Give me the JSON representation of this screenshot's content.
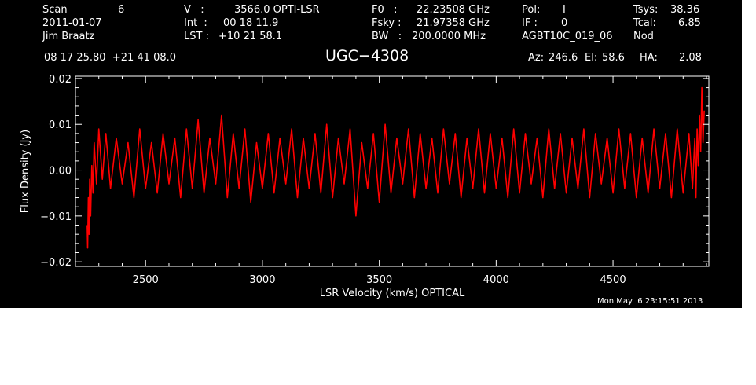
{
  "header": {
    "col1": {
      "scan_label": "Scan",
      "scan_value": "6",
      "date": "2011-01-07",
      "observer": "Jim Braatz"
    },
    "col2": {
      "v_label": "V   :",
      "v_value": "3566.0 OPTI-LSR",
      "int_label": "Int  :",
      "int_value": "00 18 11.9",
      "lst_label": "LST :",
      "lst_value": "+10 21 58.1"
    },
    "col3": {
      "f0_label": "F0   :",
      "f0_value": "22.23508 GHz",
      "fsky_label": "Fsky :",
      "fsky_value": "21.97358 GHz",
      "bw_label": "BW   :",
      "bw_value": "200.0000 MHz"
    },
    "col4": {
      "pol_label": "Pol:",
      "pol_value": "I",
      "if_label": "IF :",
      "if_value": "0",
      "project": "AGBT10C_019_06"
    },
    "col5": {
      "tsys_label": "Tsys:",
      "tsys_value": "38.36",
      "tcal_label": "Tcal:",
      "tcal_value": "6.85",
      "mode": "Nod"
    },
    "coords": "08 17 25.80  +21 41 08.0",
    "source": "UGC−4308",
    "az_label": "Az:",
    "az_value": "246.6",
    "el_label": "El:",
    "el_value": "58.6",
    "ha_label": "HA:",
    "ha_value": "2.08"
  },
  "timestamp": "Mon May  6 23:15:51 2013",
  "colors": {
    "background": "#000000",
    "axes": "#ffffff",
    "series": "#ff0000"
  },
  "chart_data": {
    "type": "line",
    "xlabel": "LSR Velocity (km/s) OPTICAL",
    "ylabel": "Flux Density (Jy)",
    "xlim": [
      2200,
      4910
    ],
    "ylim": [
      -0.021,
      0.0205
    ],
    "x_ticks": [
      2500,
      3000,
      3500,
      4000,
      4500
    ],
    "x_tick_labels": [
      "2500",
      "3000",
      "3500",
      "4000",
      "4500"
    ],
    "y_ticks": [
      -0.02,
      -0.01,
      0.0,
      0.01,
      0.02
    ],
    "y_tick_labels": [
      "−0.02",
      "−0.01",
      "0.00",
      "0.01",
      "0.02"
    ],
    "grid": false,
    "series": [
      {
        "color": "#ff0000",
        "x": [
          2250,
          2252,
          2255,
          2258,
          2261,
          2265,
          2270,
          2275,
          2280,
          2290,
          2300,
          2315,
          2330,
          2350,
          2375,
          2400,
          2425,
          2450,
          2475,
          2500,
          2525,
          2550,
          2575,
          2600,
          2625,
          2650,
          2675,
          2700,
          2725,
          2750,
          2775,
          2800,
          2825,
          2850,
          2875,
          2900,
          2925,
          2950,
          2975,
          3000,
          3025,
          3050,
          3075,
          3100,
          3125,
          3150,
          3175,
          3200,
          3225,
          3250,
          3275,
          3300,
          3325,
          3350,
          3375,
          3400,
          3425,
          3450,
          3475,
          3500,
          3525,
          3550,
          3575,
          3600,
          3625,
          3650,
          3675,
          3700,
          3725,
          3750,
          3775,
          3800,
          3825,
          3850,
          3875,
          3900,
          3925,
          3950,
          3975,
          4000,
          4025,
          4050,
          4075,
          4100,
          4125,
          4150,
          4175,
          4200,
          4225,
          4250,
          4275,
          4300,
          4325,
          4350,
          4375,
          4400,
          4425,
          4450,
          4475,
          4500,
          4525,
          4550,
          4575,
          4600,
          4625,
          4650,
          4675,
          4700,
          4725,
          4750,
          4775,
          4800,
          4825,
          4840,
          4850,
          4855,
          4860,
          4865,
          4870,
          4875,
          4880,
          4885,
          4890
        ],
        "y": [
          -0.012,
          -0.017,
          -0.006,
          -0.014,
          -0.002,
          -0.01,
          0.001,
          -0.005,
          0.006,
          -0.003,
          0.009,
          -0.002,
          0.008,
          -0.004,
          0.007,
          -0.003,
          0.006,
          -0.006,
          0.009,
          -0.004,
          0.006,
          -0.005,
          0.008,
          -0.003,
          0.007,
          -0.006,
          0.009,
          -0.004,
          0.011,
          -0.005,
          0.007,
          -0.003,
          0.012,
          -0.006,
          0.008,
          -0.004,
          0.009,
          -0.007,
          0.006,
          -0.004,
          0.008,
          -0.005,
          0.007,
          -0.003,
          0.009,
          -0.006,
          0.007,
          -0.004,
          0.008,
          -0.005,
          0.01,
          -0.006,
          0.007,
          -0.003,
          0.009,
          -0.01,
          0.006,
          -0.004,
          0.008,
          -0.007,
          0.01,
          -0.005,
          0.007,
          -0.003,
          0.009,
          -0.006,
          0.008,
          -0.004,
          0.007,
          -0.005,
          0.009,
          -0.003,
          0.008,
          -0.006,
          0.007,
          -0.004,
          0.009,
          -0.005,
          0.008,
          -0.004,
          0.007,
          -0.006,
          0.009,
          -0.005,
          0.008,
          -0.003,
          0.007,
          -0.006,
          0.009,
          -0.004,
          0.008,
          -0.005,
          0.007,
          -0.004,
          0.009,
          -0.006,
          0.008,
          -0.003,
          0.007,
          -0.005,
          0.009,
          -0.004,
          0.008,
          -0.006,
          0.007,
          -0.005,
          0.009,
          -0.004,
          0.008,
          -0.006,
          0.009,
          -0.005,
          0.008,
          -0.004,
          0.007,
          -0.006,
          0.009,
          0.001,
          0.012,
          0.004,
          0.018,
          0.006,
          0.013
        ]
      }
    ]
  }
}
